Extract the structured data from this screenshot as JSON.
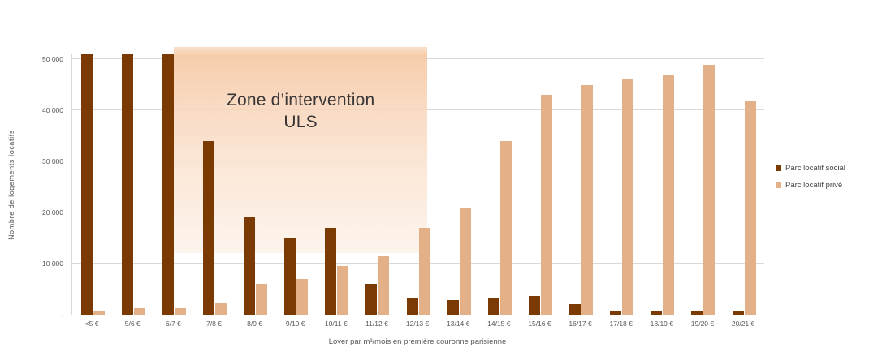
{
  "chart_data": {
    "type": "bar",
    "title": "",
    "categories": [
      "<5 €",
      "5/6 €",
      "6/7 €",
      "7/8 €",
      "8/9 €",
      "9/10 €",
      "10/11 €",
      "11/12 €",
      "12/13 €",
      "13/14 €",
      "14/15 €",
      "15/16 €",
      "16/17 €",
      "17/18 €",
      "18/19 €",
      "19/20 €",
      "20/21 €"
    ],
    "series": [
      {
        "name": "Parc locatif social",
        "color": "#7c3a03",
        "values": [
          51000,
          51000,
          51000,
          34000,
          19000,
          15000,
          17000,
          6000,
          3200,
          2800,
          3200,
          3600,
          2000,
          800,
          800,
          800,
          800
        ]
      },
      {
        "name": "Parc locatif privé",
        "color": "#e4b088",
        "values": [
          800,
          1200,
          1200,
          2200,
          6000,
          7000,
          9500,
          11500,
          17000,
          21000,
          34000,
          43000,
          45000,
          46000,
          47000,
          49000,
          42000
        ]
      }
    ],
    "xlabel": "Loyer par m²/mois en première couronne parisienne",
    "ylabel": "Nombre de logements locatifs",
    "ylim": [
      0,
      51000
    ],
    "y_ticks": [
      {
        "value": 50000,
        "label": "50 000"
      },
      {
        "value": 40000,
        "label": "40 000"
      },
      {
        "value": 30000,
        "label": "30 000"
      },
      {
        "value": 20000,
        "label": "20 000"
      },
      {
        "value": 10000,
        "label": "10 000"
      },
      {
        "value": 0,
        "label": "-"
      }
    ],
    "grid": true,
    "legend_position": "right",
    "annotation": {
      "label_line1": "Zone d’intervention",
      "label_line2": "ULS",
      "x_from": "6/7 €",
      "x_to": "12/13 €",
      "x_from_frac": 0.147,
      "x_to_frac": 0.513,
      "y_from_value": 12000,
      "y_to_value": 52400,
      "fill_top": "#f5c69e",
      "fill_bottom": "#fdf2ea"
    }
  },
  "colors": {
    "background": "#ffffff",
    "gridline": "#d9d9d9",
    "axis_text": "#595959",
    "annotation_text": "#3a3536"
  }
}
